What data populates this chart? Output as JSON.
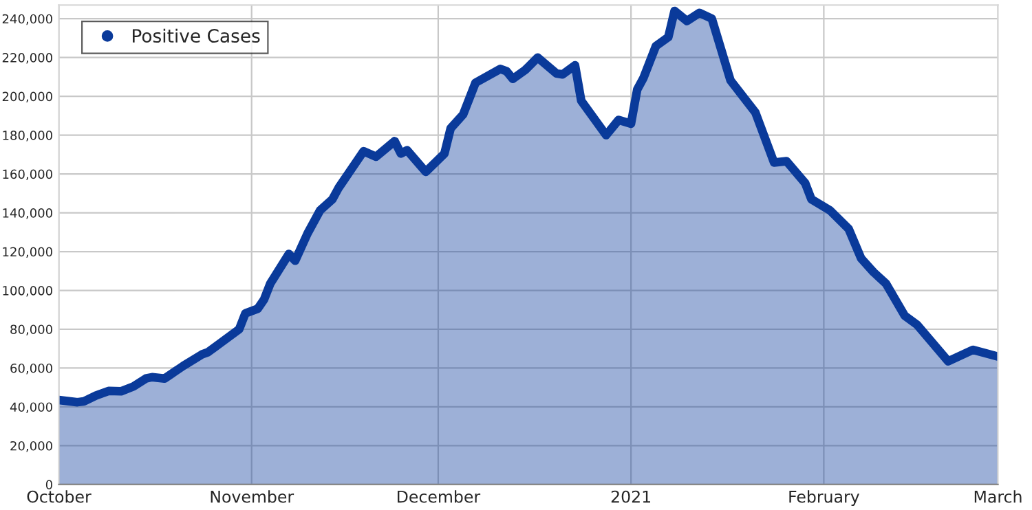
{
  "chart_data": {
    "type": "area",
    "x": [
      "2020-10-01",
      "2020-10-04",
      "2020-10-05",
      "2020-10-07",
      "2020-10-09",
      "2020-10-11",
      "2020-10-13",
      "2020-10-15",
      "2020-10-16",
      "2020-10-18",
      "2020-10-21",
      "2020-10-24",
      "2020-10-25",
      "2020-10-27",
      "2020-10-30",
      "2020-10-31",
      "2020-11-02",
      "2020-11-03",
      "2020-11-04",
      "2020-11-07",
      "2020-11-08",
      "2020-11-10",
      "2020-11-12",
      "2020-11-14",
      "2020-11-15",
      "2020-11-16",
      "2020-11-19",
      "2020-11-21",
      "2020-11-24",
      "2020-11-25",
      "2020-11-26",
      "2020-11-29",
      "2020-12-02",
      "2020-12-03",
      "2020-12-05",
      "2020-12-07",
      "2020-12-11",
      "2020-12-12",
      "2020-12-13",
      "2020-12-15",
      "2020-12-17",
      "2020-12-20",
      "2020-12-21",
      "2020-12-23",
      "2020-12-24",
      "2020-12-28",
      "2020-12-30",
      "2021-01-01",
      "2021-01-02",
      "2021-01-03",
      "2021-01-05",
      "2021-01-07",
      "2021-01-08",
      "2021-01-10",
      "2021-01-12",
      "2021-01-14",
      "2021-01-17",
      "2021-01-21",
      "2021-01-24",
      "2021-01-26",
      "2021-01-29",
      "2021-01-30",
      "2021-02-02",
      "2021-02-05",
      "2021-02-07",
      "2021-02-09",
      "2021-02-11",
      "2021-02-14",
      "2021-02-16",
      "2021-02-21",
      "2021-02-25",
      "2021-03-01"
    ],
    "series": [
      {
        "name": "Positive Cases",
        "color": "#0a3a9a",
        "values": [
          43500,
          42400,
          42800,
          45900,
          48200,
          48000,
          50500,
          54600,
          55300,
          54600,
          61100,
          67000,
          68200,
          72900,
          80000,
          88200,
          90600,
          95300,
          103500,
          118800,
          115300,
          129400,
          141200,
          147000,
          152900,
          157600,
          171700,
          168900,
          176900,
          170500,
          172200,
          161100,
          170500,
          183500,
          190600,
          207000,
          214100,
          212900,
          209000,
          213600,
          220000,
          211800,
          211300,
          216000,
          197700,
          180000,
          187800,
          185900,
          203500,
          209400,
          225900,
          230500,
          244000,
          238800,
          243000,
          240000,
          208200,
          191700,
          165900,
          166600,
          155300,
          147000,
          141200,
          131700,
          116500,
          109400,
          103500,
          87000,
          82300,
          63500,
          69400,
          65900
        ]
      }
    ],
    "xlim": [
      "2020-10-01",
      "2021-03-01"
    ],
    "xticks": [
      {
        "value": "2020-10-01",
        "label": "October"
      },
      {
        "value": "2020-11-01",
        "label": "November"
      },
      {
        "value": "2020-12-01",
        "label": "December"
      },
      {
        "value": "2021-01-01",
        "label": "2021"
      },
      {
        "value": "2021-02-01",
        "label": "February"
      },
      {
        "value": "2021-03-01",
        "label": "March"
      }
    ],
    "ylim": [
      0,
      247000
    ],
    "yticks": [
      {
        "value": 0,
        "label": "0"
      },
      {
        "value": 20000,
        "label": "20,000"
      },
      {
        "value": 40000,
        "label": "40,000"
      },
      {
        "value": 60000,
        "label": "60,000"
      },
      {
        "value": 80000,
        "label": "80,000"
      },
      {
        "value": 100000,
        "label": "100,000"
      },
      {
        "value": 120000,
        "label": "120,000"
      },
      {
        "value": 140000,
        "label": "140,000"
      },
      {
        "value": 160000,
        "label": "160,000"
      },
      {
        "value": 180000,
        "label": "180,000"
      },
      {
        "value": 200000,
        "label": "200,000"
      },
      {
        "value": 220000,
        "label": "220,000"
      },
      {
        "value": 240000,
        "label": "240,000"
      }
    ],
    "grid": true,
    "legend": "top left"
  }
}
